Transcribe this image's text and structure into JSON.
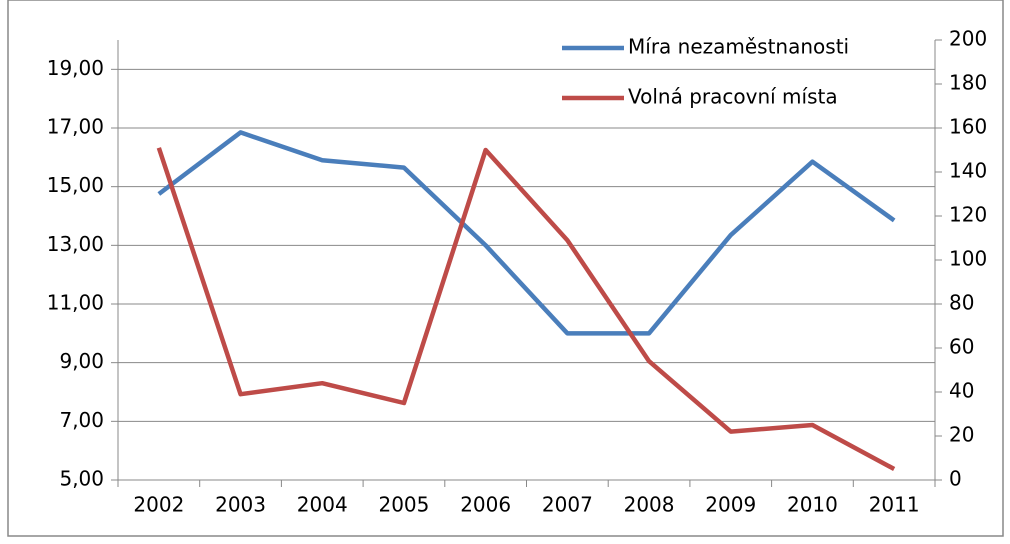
{
  "chart_data": {
    "type": "line",
    "categories": [
      "2002",
      "2003",
      "2004",
      "2005",
      "2006",
      "2007",
      "2008",
      "2009",
      "2010",
      "2011"
    ],
    "series": [
      {
        "name": "Míra nezaměstnanosti",
        "color": "#4a7ebb",
        "values": [
          14.75,
          16.85,
          15.9,
          15.65,
          13.0,
          10.0,
          10.0,
          13.35,
          15.85,
          13.85
        ]
      },
      {
        "name": "Volná pracovní místa",
        "color": "#be4b48",
        "axis": "y2",
        "values": [
          151,
          39,
          44,
          35,
          150,
          109,
          54,
          22,
          25,
          5
        ]
      }
    ],
    "ylim": [
      5,
      20
    ],
    "yticks": [
      {
        "value": 5,
        "label": "5,00"
      },
      {
        "value": 7,
        "label": "7,00"
      },
      {
        "value": 9,
        "label": "9,00"
      },
      {
        "value": 11,
        "label": "11,00"
      },
      {
        "value": 13,
        "label": "13,00"
      },
      {
        "value": 15,
        "label": "15,00"
      },
      {
        "value": 17,
        "label": "17,00"
      },
      {
        "value": 19,
        "label": "19,00"
      }
    ],
    "y2lim": [
      0,
      200
    ],
    "y2ticks": [
      0,
      20,
      40,
      60,
      80,
      100,
      120,
      140,
      160,
      180,
      200
    ],
    "grid": true,
    "legend": "top-right"
  }
}
